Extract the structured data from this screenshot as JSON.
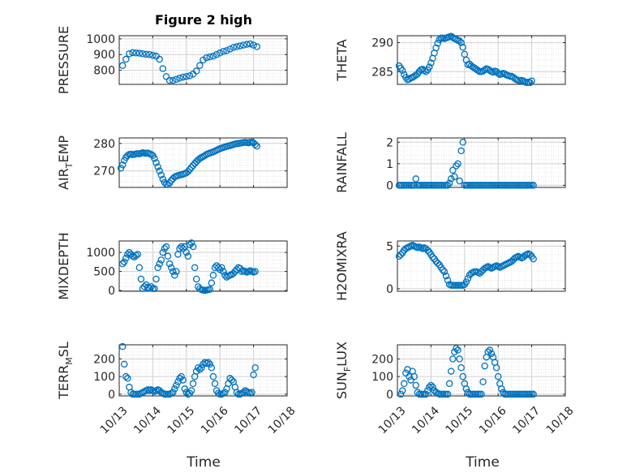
{
  "figure": {
    "title": "Figure 2 high",
    "marker_color": "#0072BD",
    "xtick_labels": [
      "10/13",
      "10/14",
      "10/15",
      "10/16",
      "10/17",
      "10/18"
    ],
    "xlabel": "Time"
  },
  "chart_data": [
    {
      "type": "scatter",
      "name": "pressure",
      "ylabel": "PRESSURE",
      "ylabel_sub": "",
      "yticks": [
        800,
        900,
        1000
      ],
      "ylim": [
        710,
        1020
      ],
      "xlim": [
        0,
        5
      ],
      "x": [
        0.1,
        0.2,
        0.3,
        0.4,
        0.5,
        0.6,
        0.7,
        0.8,
        0.9,
        1.0,
        1.1,
        1.2,
        1.3,
        1.4,
        1.5,
        1.6,
        1.7,
        1.8,
        1.9,
        2.0,
        2.1,
        2.2,
        2.3,
        2.4,
        2.5,
        2.6,
        2.7,
        2.8,
        2.9,
        3.0,
        3.1,
        3.2,
        3.3,
        3.4,
        3.5,
        3.6,
        3.7,
        3.8,
        3.9,
        4.0,
        4.1
      ],
      "y": [
        830,
        870,
        905,
        912,
        910,
        908,
        905,
        902,
        900,
        895,
        890,
        870,
        810,
        760,
        735,
        735,
        742,
        750,
        756,
        760,
        765,
        775,
        795,
        830,
        865,
        880,
        885,
        890,
        900,
        910,
        920,
        925,
        935,
        945,
        950,
        955,
        960,
        965,
        968,
        960,
        950
      ]
    },
    {
      "type": "scatter",
      "name": "theta",
      "ylabel": "THETA",
      "ylabel_sub": "",
      "yticks": [
        285,
        290
      ],
      "ylim": [
        282.8,
        291.2
      ],
      "xlim": [
        0,
        5
      ],
      "x": [
        0.05,
        0.1,
        0.15,
        0.2,
        0.25,
        0.3,
        0.35,
        0.4,
        0.45,
        0.5,
        0.55,
        0.6,
        0.65,
        0.7,
        0.75,
        0.8,
        0.85,
        0.9,
        0.95,
        1.0,
        1.05,
        1.1,
        1.15,
        1.2,
        1.25,
        1.3,
        1.35,
        1.4,
        1.45,
        1.5,
        1.55,
        1.6,
        1.65,
        1.7,
        1.75,
        1.8,
        1.85,
        1.9,
        1.95,
        2.0,
        2.05,
        2.1,
        2.15,
        2.2,
        2.25,
        2.3,
        2.35,
        2.4,
        2.45,
        2.5,
        2.55,
        2.6,
        2.65,
        2.7,
        2.75,
        2.8,
        2.85,
        2.9,
        2.95,
        3.0,
        3.05,
        3.1,
        3.15,
        3.2,
        3.25,
        3.3,
        3.35,
        3.4,
        3.45,
        3.5,
        3.55,
        3.6,
        3.65,
        3.7,
        3.75,
        3.8,
        3.85,
        3.9,
        3.95,
        4.0
      ],
      "y": [
        286.0,
        285.6,
        285.2,
        284.5,
        284.0,
        283.6,
        283.7,
        283.9,
        284.0,
        284.2,
        284.4,
        284.6,
        285.0,
        285.3,
        285.4,
        285.2,
        285.0,
        285.3,
        285.8,
        286.5,
        287.3,
        288.2,
        289.1,
        289.9,
        290.5,
        290.8,
        290.8,
        290.7,
        290.8,
        290.9,
        291.0,
        291.1,
        290.9,
        290.7,
        290.6,
        290.4,
        290.3,
        290.0,
        289.2,
        288.0,
        287.0,
        286.2,
        286.3,
        286.0,
        285.8,
        285.6,
        285.4,
        285.2,
        285.0,
        285.0,
        285.1,
        285.3,
        285.5,
        285.4,
        285.2,
        285.0,
        284.9,
        285.1,
        285.0,
        284.7,
        284.5,
        284.6,
        284.7,
        284.6,
        284.4,
        284.3,
        284.2,
        284.2,
        284.0,
        283.8,
        283.6,
        283.5,
        283.4,
        283.5,
        283.4,
        283.2,
        283.1,
        283.2,
        283.1,
        283.4
      ]
    },
    {
      "type": "scatter",
      "name": "air_temp",
      "ylabel": "AIR",
      "ylabel_sub": "T",
      "ylabel_suffix": "EMP",
      "yticks": [
        270,
        280
      ],
      "ylim": [
        264,
        282
      ],
      "xlim": [
        0,
        5
      ],
      "x": [
        0.05,
        0.1,
        0.15,
        0.2,
        0.25,
        0.3,
        0.35,
        0.4,
        0.45,
        0.5,
        0.55,
        0.6,
        0.65,
        0.7,
        0.75,
        0.8,
        0.85,
        0.9,
        0.95,
        1.0,
        1.05,
        1.1,
        1.15,
        1.2,
        1.25,
        1.3,
        1.35,
        1.4,
        1.45,
        1.5,
        1.55,
        1.6,
        1.65,
        1.7,
        1.75,
        1.8,
        1.85,
        1.9,
        1.95,
        2.0,
        2.05,
        2.1,
        2.15,
        2.2,
        2.25,
        2.3,
        2.35,
        2.4,
        2.45,
        2.5,
        2.55,
        2.6,
        2.65,
        2.7,
        2.75,
        2.8,
        2.85,
        2.9,
        2.95,
        3.0,
        3.05,
        3.1,
        3.15,
        3.2,
        3.25,
        3.3,
        3.35,
        3.4,
        3.45,
        3.5,
        3.55,
        3.6,
        3.65,
        3.7,
        3.75,
        3.8,
        3.85,
        3.9,
        3.95,
        4.0,
        4.05,
        4.1
      ],
      "y": [
        271.0,
        272.2,
        273.8,
        274.9,
        275.6,
        276.0,
        276.1,
        275.9,
        276.0,
        276.2,
        276.3,
        276.2,
        276.4,
        276.6,
        276.5,
        276.4,
        276.5,
        276.3,
        276.0,
        275.6,
        274.5,
        273.0,
        271.5,
        270.0,
        268.5,
        267.0,
        265.8,
        265.2,
        265.0,
        265.6,
        266.5,
        267.2,
        267.8,
        268.1,
        268.3,
        268.5,
        268.6,
        268.8,
        269.0,
        269.3,
        269.8,
        270.5,
        271.3,
        272.0,
        272.7,
        273.4,
        274.0,
        274.5,
        274.9,
        275.2,
        275.6,
        276.0,
        276.3,
        276.5,
        276.7,
        276.9,
        277.2,
        277.5,
        277.8,
        278.1,
        278.3,
        278.5,
        278.7,
        278.9,
        279.1,
        279.2,
        279.4,
        279.6,
        279.8,
        279.9,
        280.0,
        280.1,
        280.2,
        280.3,
        280.4,
        280.3,
        280.2,
        280.4,
        280.5,
        280.2,
        279.6,
        279.0
      ]
    },
    {
      "type": "scatter",
      "name": "rainfall",
      "ylabel": "RAINFALL",
      "ylabel_sub": "",
      "yticks": [
        0,
        1,
        2
      ],
      "ylim": [
        -0.1,
        2.2
      ],
      "xlim": [
        0,
        5
      ],
      "x": [
        0.05,
        0.1,
        0.15,
        0.2,
        0.25,
        0.3,
        0.35,
        0.4,
        0.45,
        0.5,
        0.55,
        0.6,
        0.65,
        0.7,
        0.75,
        0.8,
        0.85,
        0.9,
        0.95,
        1.0,
        1.05,
        1.1,
        1.15,
        1.2,
        1.25,
        1.3,
        1.35,
        1.4,
        1.45,
        1.5,
        1.55,
        1.6,
        1.65,
        1.7,
        1.75,
        1.8,
        1.85,
        1.9,
        1.95,
        2.0,
        2.05,
        2.1,
        2.15,
        2.2,
        2.25,
        2.3,
        2.35,
        2.4,
        2.45,
        2.5,
        2.55,
        2.6,
        2.65,
        2.7,
        2.75,
        2.8,
        2.85,
        2.9,
        2.95,
        3.0,
        3.05,
        3.1,
        3.15,
        3.2,
        3.25,
        3.3,
        3.35,
        3.4,
        3.45,
        3.5,
        3.55,
        3.6,
        3.65,
        3.7,
        3.75,
        3.8,
        3.85,
        3.9,
        3.95,
        4.0,
        4.05
      ],
      "y": [
        0,
        0,
        0,
        0,
        0,
        0,
        0,
        0,
        0,
        0,
        0.3,
        0,
        0,
        0,
        0,
        0,
        0,
        0,
        0,
        0,
        0,
        0,
        0,
        0,
        0,
        0,
        0,
        0,
        0,
        0,
        0.1,
        0.3,
        0.7,
        0.4,
        0.9,
        1.0,
        0.2,
        1.6,
        2.0,
        0,
        0,
        0,
        0,
        0,
        0,
        0,
        0,
        0,
        0,
        0,
        0,
        0,
        0,
        0,
        0,
        0,
        0,
        0,
        0,
        0,
        0,
        0,
        0,
        0,
        0,
        0,
        0,
        0,
        0,
        0,
        0,
        0,
        0,
        0,
        0,
        0,
        0,
        0,
        0,
        0,
        0
      ]
    },
    {
      "type": "scatter",
      "name": "mixdepth",
      "ylabel": "MIXDEPTH",
      "ylabel_sub": "",
      "yticks": [
        0,
        500,
        1000
      ],
      "ylim": [
        -20,
        1300
      ],
      "xlim": [
        0,
        5
      ],
      "x": [
        0.1,
        0.15,
        0.2,
        0.25,
        0.3,
        0.35,
        0.4,
        0.45,
        0.5,
        0.55,
        0.6,
        0.65,
        0.7,
        0.75,
        0.8,
        0.85,
        0.9,
        0.95,
        1.0,
        1.05,
        1.1,
        1.15,
        1.2,
        1.25,
        1.3,
        1.35,
        1.4,
        1.45,
        1.5,
        1.55,
        1.6,
        1.65,
        1.7,
        1.75,
        1.8,
        1.85,
        1.9,
        1.95,
        2.0,
        2.05,
        2.1,
        2.15,
        2.2,
        2.25,
        2.3,
        2.35,
        2.4,
        2.45,
        2.5,
        2.55,
        2.6,
        2.65,
        2.7,
        2.75,
        2.8,
        2.85,
        2.9,
        2.95,
        3.0,
        3.05,
        3.1,
        3.15,
        3.2,
        3.25,
        3.3,
        3.35,
        3.4,
        3.45,
        3.5,
        3.55,
        3.6,
        3.65,
        3.7,
        3.75,
        3.8,
        3.85,
        3.9,
        3.95,
        4.0,
        4.05
      ],
      "y": [
        700,
        750,
        850,
        950,
        1000,
        950,
        900,
        880,
        920,
        950,
        600,
        300,
        50,
        100,
        150,
        80,
        60,
        100,
        50,
        50,
        300,
        600,
        700,
        800,
        1000,
        1100,
        1150,
        900,
        700,
        600,
        500,
        400,
        500,
        950,
        1100,
        1150,
        1100,
        1150,
        1000,
        900,
        1200,
        1250,
        1150,
        600,
        300,
        100,
        50,
        20,
        10,
        5,
        10,
        20,
        30,
        200,
        400,
        600,
        650,
        600,
        550,
        600,
        500,
        400,
        350,
        380,
        400,
        420,
        450,
        500,
        550,
        600,
        580,
        500,
        520,
        500,
        480,
        500,
        520,
        500,
        480,
        500
      ]
    },
    {
      "type": "scatter",
      "name": "h2omixra",
      "ylabel": "H2OMIXRA",
      "ylabel_sub": "",
      "yticks": [
        0,
        5
      ],
      "ylim": [
        -0.3,
        5.6
      ],
      "xlim": [
        0,
        5
      ],
      "x": [
        0.05,
        0.1,
        0.15,
        0.2,
        0.25,
        0.3,
        0.35,
        0.4,
        0.45,
        0.5,
        0.55,
        0.6,
        0.65,
        0.7,
        0.75,
        0.8,
        0.85,
        0.9,
        0.95,
        1.0,
        1.05,
        1.1,
        1.15,
        1.2,
        1.25,
        1.3,
        1.35,
        1.4,
        1.45,
        1.5,
        1.55,
        1.6,
        1.65,
        1.7,
        1.75,
        1.8,
        1.85,
        1.9,
        1.95,
        2.0,
        2.05,
        2.1,
        2.15,
        2.2,
        2.25,
        2.3,
        2.35,
        2.4,
        2.45,
        2.5,
        2.55,
        2.6,
        2.65,
        2.7,
        2.75,
        2.8,
        2.85,
        2.9,
        2.95,
        3.0,
        3.05,
        3.1,
        3.15,
        3.2,
        3.25,
        3.3,
        3.35,
        3.4,
        3.45,
        3.5,
        3.55,
        3.6,
        3.65,
        3.7,
        3.75,
        3.8,
        3.85,
        3.9,
        3.95,
        4.0,
        4.05
      ],
      "y": [
        3.8,
        4.0,
        4.2,
        4.5,
        4.7,
        4.8,
        4.9,
        5.0,
        5.1,
        5.0,
        4.9,
        4.8,
        4.9,
        4.8,
        4.7,
        4.8,
        4.7,
        4.5,
        4.3,
        4.0,
        3.7,
        3.5,
        3.2,
        3.0,
        2.8,
        2.5,
        2.2,
        2.0,
        1.5,
        1.0,
        0.5,
        0.4,
        0.4,
        0.4,
        0.4,
        0.4,
        0.4,
        0.4,
        0.4,
        0.5,
        0.8,
        1.2,
        1.6,
        1.8,
        1.9,
        2.0,
        2.0,
        1.9,
        1.8,
        2.0,
        2.2,
        2.4,
        2.5,
        2.6,
        2.5,
        2.4,
        2.5,
        2.6,
        2.7,
        2.6,
        2.5,
        2.6,
        2.7,
        2.8,
        2.9,
        3.0,
        3.1,
        3.2,
        3.4,
        3.6,
        3.7,
        3.8,
        3.7,
        3.6,
        3.7,
        3.9,
        4.0,
        4.1,
        4.0,
        3.8,
        3.5
      ]
    },
    {
      "type": "scatter",
      "name": "terr_msl",
      "ylabel": "TERR",
      "ylabel_sub": "M",
      "ylabel_suffix": "SL",
      "yticks": [
        0,
        100,
        200
      ],
      "ylim": [
        -10,
        280
      ],
      "xlim": [
        0,
        5
      ],
      "x": [
        0.1,
        0.15,
        0.2,
        0.25,
        0.3,
        0.35,
        0.4,
        0.45,
        0.5,
        0.55,
        0.6,
        0.65,
        0.7,
        0.75,
        0.8,
        0.85,
        0.9,
        0.95,
        1.0,
        1.05,
        1.1,
        1.15,
        1.2,
        1.25,
        1.3,
        1.35,
        1.4,
        1.45,
        1.5,
        1.55,
        1.6,
        1.65,
        1.7,
        1.75,
        1.8,
        1.85,
        1.9,
        1.95,
        2.0,
        2.05,
        2.1,
        2.15,
        2.2,
        2.25,
        2.3,
        2.35,
        2.4,
        2.45,
        2.5,
        2.55,
        2.6,
        2.65,
        2.7,
        2.75,
        2.8,
        2.85,
        2.9,
        2.95,
        3.0,
        3.05,
        3.1,
        3.15,
        3.2,
        3.25,
        3.3,
        3.35,
        3.4,
        3.45,
        3.5,
        3.55,
        3.6,
        3.65,
        3.7,
        3.75,
        3.8,
        3.85,
        3.9,
        3.95,
        4.0,
        4.05
      ],
      "y": [
        270,
        170,
        100,
        90,
        40,
        10,
        0,
        0,
        0,
        0,
        0,
        5,
        10,
        15,
        20,
        25,
        20,
        25,
        20,
        15,
        20,
        25,
        20,
        10,
        5,
        0,
        0,
        0,
        0,
        5,
        10,
        30,
        50,
        70,
        90,
        100,
        80,
        30,
        10,
        0,
        5,
        20,
        60,
        100,
        130,
        150,
        140,
        150,
        170,
        180,
        175,
        180,
        170,
        150,
        100,
        60,
        20,
        5,
        0,
        0,
        5,
        10,
        30,
        60,
        90,
        80,
        70,
        40,
        10,
        0,
        0,
        5,
        10,
        20,
        15,
        10,
        5,
        10,
        110,
        150
      ]
    },
    {
      "type": "scatter",
      "name": "sun_flux",
      "ylabel": "SUN",
      "ylabel_sub": "F",
      "ylabel_suffix": "LUX",
      "yticks": [
        0,
        100,
        200
      ],
      "ylim": [
        -10,
        280
      ],
      "xlim": [
        0,
        5
      ],
      "x": [
        0.1,
        0.15,
        0.2,
        0.25,
        0.3,
        0.35,
        0.4,
        0.45,
        0.5,
        0.55,
        0.6,
        0.65,
        0.7,
        0.75,
        0.8,
        0.85,
        0.9,
        0.95,
        1.0,
        1.05,
        1.1,
        1.15,
        1.2,
        1.25,
        1.3,
        1.35,
        1.4,
        1.45,
        1.5,
        1.55,
        1.6,
        1.65,
        1.7,
        1.75,
        1.8,
        1.85,
        1.9,
        1.95,
        2.0,
        2.05,
        2.1,
        2.15,
        2.2,
        2.25,
        2.3,
        2.35,
        2.4,
        2.45,
        2.5,
        2.55,
        2.6,
        2.65,
        2.7,
        2.75,
        2.8,
        2.85,
        2.9,
        2.95,
        3.0,
        3.05,
        3.1,
        3.15,
        3.2,
        3.25,
        3.3,
        3.35,
        3.4,
        3.45,
        3.5,
        3.55,
        3.6,
        3.65,
        3.7,
        3.75,
        3.8,
        3.85,
        3.9,
        3.95,
        4.0,
        4.05
      ],
      "y": [
        0,
        20,
        60,
        120,
        140,
        100,
        80,
        130,
        100,
        50,
        10,
        0,
        0,
        0,
        0,
        0,
        20,
        40,
        50,
        40,
        20,
        10,
        5,
        0,
        0,
        0,
        0,
        0,
        0,
        60,
        130,
        200,
        240,
        260,
        250,
        200,
        150,
        100,
        60,
        30,
        10,
        0,
        0,
        0,
        0,
        0,
        0,
        0,
        0,
        70,
        160,
        210,
        240,
        250,
        230,
        210,
        180,
        150,
        100,
        60,
        30,
        10,
        0,
        0,
        0,
        0,
        0,
        0,
        0,
        0,
        0,
        0,
        0,
        0,
        0,
        0,
        0,
        0,
        0,
        0
      ]
    }
  ]
}
